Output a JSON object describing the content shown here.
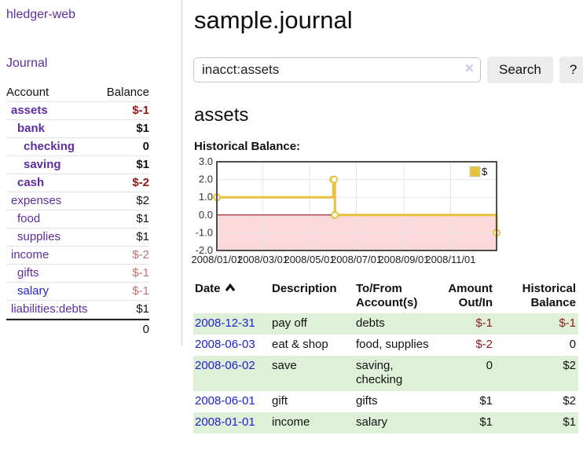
{
  "app": {
    "brand": "hledger-web"
  },
  "sidebar": {
    "journal_link": "Journal",
    "accounts_header": {
      "account": "Account",
      "balance": "Balance"
    },
    "accounts": [
      {
        "name": "assets",
        "balance": "$-1"
      },
      {
        "name": "bank",
        "balance": "$1"
      },
      {
        "name": "checking",
        "balance": "0"
      },
      {
        "name": "saving",
        "balance": "$1"
      },
      {
        "name": "cash",
        "balance": "$-2"
      },
      {
        "name": "expenses",
        "balance": "$2"
      },
      {
        "name": "food",
        "balance": "$1"
      },
      {
        "name": "supplies",
        "balance": "$1"
      },
      {
        "name": "income",
        "balance": "$-2"
      },
      {
        "name": "gifts",
        "balance": "$-1"
      },
      {
        "name": "salary",
        "balance": "$-1"
      },
      {
        "name": "liabilities:debts",
        "balance": "$1"
      }
    ],
    "total": "0"
  },
  "header": {
    "title": "sample.journal"
  },
  "search": {
    "query": "inacct:assets",
    "clear_icon": "×",
    "button": "Search",
    "help_button": "?"
  },
  "account_page": {
    "heading": "assets",
    "chart_label": "Historical Balance:"
  },
  "colors": {
    "link_purple": "#5f2d9e",
    "link_blue": "#2323cf",
    "negative_red": "#9a1515",
    "negative_muted": "#c4706f",
    "row_green": "#dff0d8",
    "chart_line": "#e8c23e"
  },
  "chart_data": {
    "type": "line",
    "title": "Historical Balance:",
    "step": true,
    "xlim": [
      0,
      365
    ],
    "ylim": [
      -2,
      3
    ],
    "grid": true,
    "legend_position": "top-right",
    "series": [
      {
        "name": "$",
        "color": "#e8c23e",
        "points": [
          {
            "date": "2008-01-01",
            "t": 0,
            "value": 1
          },
          {
            "date": "2008-06-01",
            "t": 152,
            "value": 2
          },
          {
            "date": "2008-06-02",
            "t": 153,
            "value": 2
          },
          {
            "date": "2008-06-03",
            "t": 154,
            "value": 0
          },
          {
            "date": "2008-12-31",
            "t": 365,
            "value": -1
          }
        ]
      }
    ],
    "yticks": [
      {
        "v": 3,
        "label": "3.0"
      },
      {
        "v": 2,
        "label": "2.0"
      },
      {
        "v": 1,
        "label": "1.0"
      },
      {
        "v": 0,
        "label": "0.0"
      },
      {
        "v": -1,
        "label": "-1.0"
      },
      {
        "v": -2,
        "label": "-2.0"
      }
    ],
    "xticks": [
      {
        "t": 0,
        "label": "2008/01/01"
      },
      {
        "t": 60,
        "label": "2008/03/01"
      },
      {
        "t": 121,
        "label": "2008/05/01"
      },
      {
        "t": 182,
        "label": "2008/07/01"
      },
      {
        "t": 244,
        "label": "2008/09/01"
      },
      {
        "t": 305,
        "label": "2008/11/01"
      }
    ],
    "colors": {
      "negative_region": "#fbd9da",
      "grid": "#e6e6e6",
      "zero_line": "#8b0000",
      "border": "#4d4d4d",
      "tick_text": "#222"
    }
  },
  "register": {
    "headers": {
      "date": "Date",
      "description": "Description",
      "account": "To/From Account(s)",
      "amount": "Amount Out/In",
      "balance": "Historical Balance"
    },
    "rows": [
      {
        "date": "2008-12-31",
        "description": "pay off",
        "account": "debts",
        "amount": "$-1",
        "balance": "$-1"
      },
      {
        "date": "2008-06-03",
        "description": "eat & shop",
        "account": "food, supplies",
        "amount": "$-2",
        "balance": "0"
      },
      {
        "date": "2008-06-02",
        "description": "save",
        "account": "saving, checking",
        "amount": "0",
        "balance": "$2"
      },
      {
        "date": "2008-06-01",
        "description": "gift",
        "account": "gifts",
        "amount": "$1",
        "balance": "$2"
      },
      {
        "date": "2008-01-01",
        "description": "income",
        "account": "salary",
        "amount": "$1",
        "balance": "$1"
      }
    ]
  }
}
